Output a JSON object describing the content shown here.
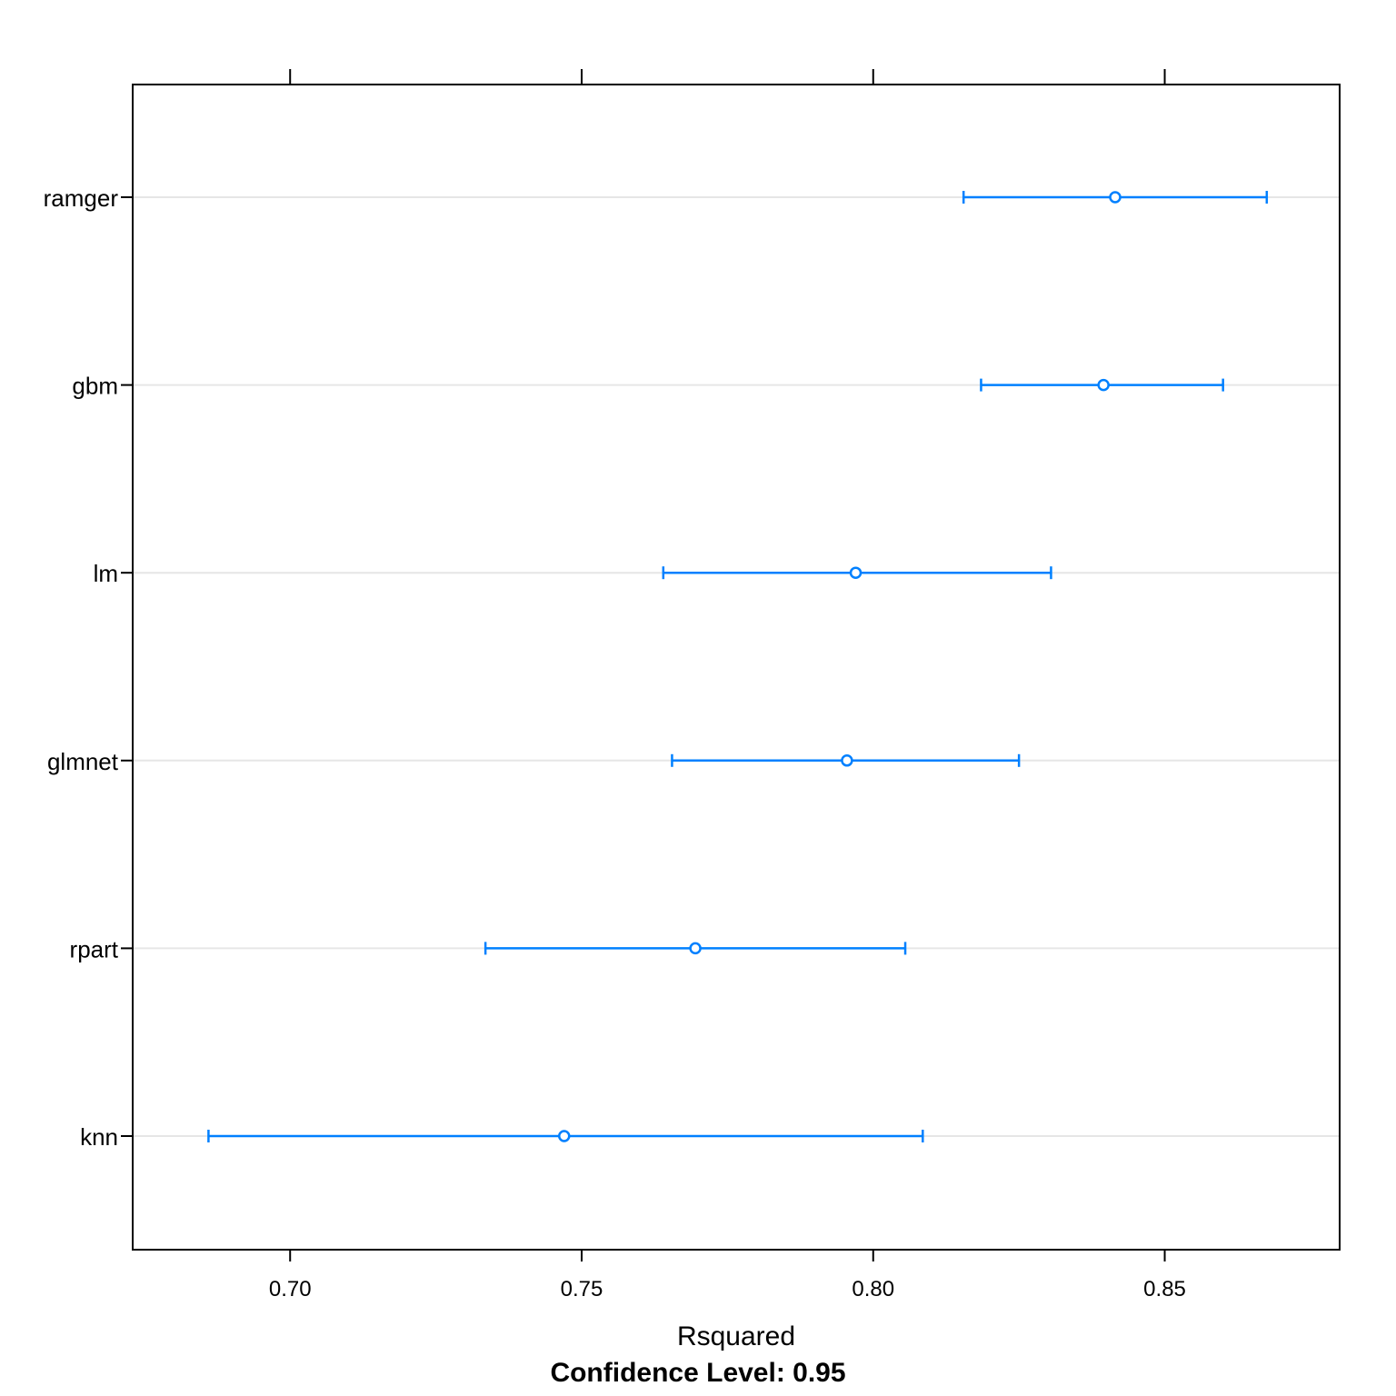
{
  "chart_data": {
    "type": "dotplot",
    "xlabel": "Rsquared",
    "subtitle": "Confidence Level: 0.95",
    "xlim": [
      0.673,
      0.88
    ],
    "x_ticks": [
      0.7,
      0.75,
      0.8,
      0.85
    ],
    "x_tick_labels": [
      "0.70",
      "0.75",
      "0.80",
      "0.85"
    ],
    "grid": "horizontal",
    "color": "#0080ff",
    "grid_color": "#e6e6e6",
    "categories": [
      "ramger",
      "gbm",
      "lm",
      "glmnet",
      "rpart",
      "knn"
    ],
    "estimates": [
      0.8415,
      0.8395,
      0.797,
      0.7955,
      0.7695,
      0.747
    ],
    "lower": [
      0.8155,
      0.8185,
      0.764,
      0.7655,
      0.7335,
      0.686
    ],
    "upper": [
      0.8675,
      0.86,
      0.8305,
      0.825,
      0.8055,
      0.8085
    ]
  }
}
